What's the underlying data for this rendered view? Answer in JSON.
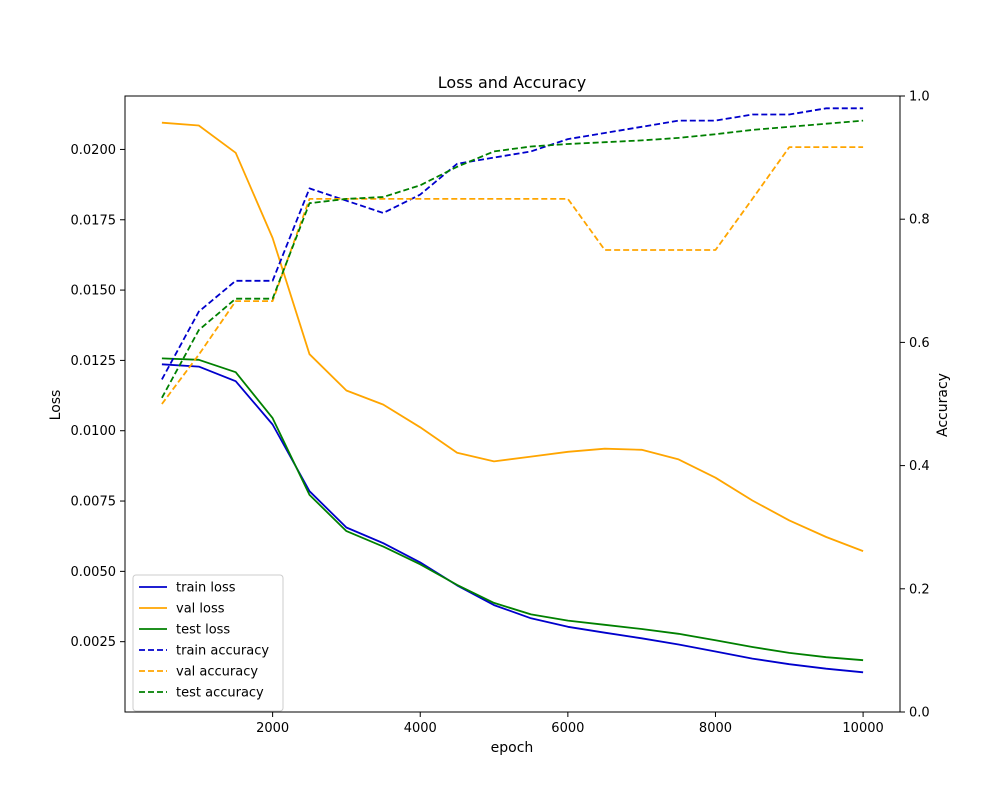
{
  "chart_data": {
    "type": "line",
    "title": "Loss and Accuracy",
    "xlabel": "epoch",
    "ylabel_left": "Loss",
    "ylabel_right": "Accuracy",
    "xlim": [
      0,
      10500
    ],
    "ylim_left": [
      0.0,
      0.0219
    ],
    "ylim_right": [
      0.0,
      1.0
    ],
    "x_ticks": [
      2000,
      4000,
      6000,
      8000,
      10000
    ],
    "x_tick_labels": [
      "2000",
      "4000",
      "6000",
      "8000",
      "10000"
    ],
    "left_ticks": [
      0.0025,
      0.005,
      0.0075,
      0.01,
      0.0125,
      0.015,
      0.0175,
      0.02
    ],
    "left_tick_labels": [
      "0.0025",
      "0.0050",
      "0.0075",
      "0.0100",
      "0.0125",
      "0.0150",
      "0.0175",
      "0.0200"
    ],
    "right_ticks": [
      0.0,
      0.2,
      0.4,
      0.6,
      0.8,
      1.0
    ],
    "right_tick_labels": [
      "0.0",
      "0.2",
      "0.4",
      "0.6",
      "0.8",
      "1.0"
    ],
    "grid": false,
    "legend_position": "lower-left",
    "x": [
      500,
      1000,
      1500,
      2000,
      2500,
      3000,
      3500,
      4000,
      4500,
      5000,
      5500,
      6000,
      6500,
      7000,
      7500,
      8000,
      8500,
      9000,
      9500,
      10000
    ],
    "series": [
      {
        "name": "train loss",
        "axis": "left",
        "color": "#0000cc",
        "dash": false,
        "values": [
          0.01236,
          0.01228,
          0.01176,
          0.01022,
          0.00785,
          0.00656,
          0.006,
          0.00532,
          0.0045,
          0.0038,
          0.00333,
          0.00303,
          0.00282,
          0.00262,
          0.0024,
          0.00215,
          0.0019,
          0.0017,
          0.00154,
          0.00141
        ]
      },
      {
        "name": "val loss",
        "axis": "left",
        "color": "#ffa500",
        "dash": false,
        "values": [
          0.02095,
          0.02085,
          0.01988,
          0.01685,
          0.01272,
          0.01143,
          0.01093,
          0.01012,
          0.00922,
          0.00891,
          0.00908,
          0.00925,
          0.00936,
          0.00932,
          0.00898,
          0.00833,
          0.00752,
          0.00681,
          0.00622,
          0.00572
        ]
      },
      {
        "name": "test loss",
        "axis": "left",
        "color": "#008000",
        "dash": false,
        "values": [
          0.01257,
          0.01252,
          0.01208,
          0.01045,
          0.00772,
          0.00643,
          0.00588,
          0.00525,
          0.00452,
          0.00388,
          0.00347,
          0.00325,
          0.0031,
          0.00295,
          0.00278,
          0.00255,
          0.00231,
          0.0021,
          0.00195,
          0.00184
        ]
      },
      {
        "name": "train accuracy",
        "axis": "right",
        "color": "#0000cc",
        "dash": true,
        "values": [
          0.54,
          0.65,
          0.7,
          0.7,
          0.85,
          0.83,
          0.81,
          0.84,
          0.89,
          0.9,
          0.91,
          0.93,
          0.94,
          0.95,
          0.96,
          0.96,
          0.97,
          0.97,
          0.98,
          0.98
        ]
      },
      {
        "name": "val accuracy",
        "axis": "right",
        "color": "#ffa500",
        "dash": true,
        "values": [
          0.5,
          0.58,
          0.667,
          0.667,
          0.833,
          0.833,
          0.833,
          0.833,
          0.833,
          0.833,
          0.833,
          0.833,
          0.75,
          0.75,
          0.75,
          0.75,
          0.833,
          0.917,
          0.917,
          0.917
        ]
      },
      {
        "name": "test accuracy",
        "axis": "right",
        "color": "#008000",
        "dash": true,
        "values": [
          0.51,
          0.62,
          0.671,
          0.671,
          0.826,
          0.833,
          0.836,
          0.855,
          0.885,
          0.91,
          0.918,
          0.922,
          0.925,
          0.928,
          0.932,
          0.938,
          0.945,
          0.95,
          0.955,
          0.96
        ]
      }
    ]
  }
}
